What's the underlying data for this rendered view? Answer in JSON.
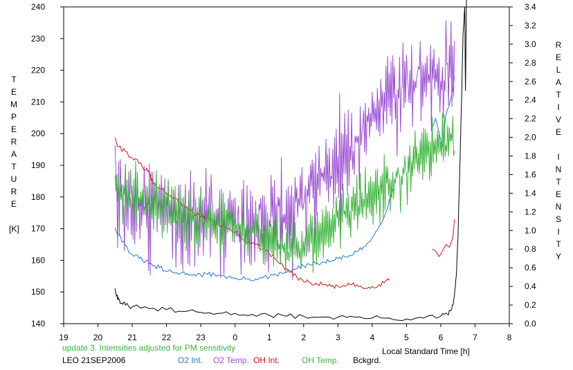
{
  "chart_data": {
    "type": "line",
    "xlabel": "Local Standard Time [h]",
    "ylabel_left_letters": [
      "T",
      "E",
      "M",
      "P",
      "E",
      "R",
      "A",
      "T",
      "U",
      "R",
      "E",
      "",
      "[K]"
    ],
    "ylabel_right_letters": [
      "R",
      "E",
      "L",
      "A",
      "T",
      "I",
      "V",
      "E",
      "",
      "I",
      "N",
      "T",
      "E",
      "N",
      "S",
      "I",
      "T",
      "Y"
    ],
    "x_ticks": [
      {
        "v": 19,
        "label": "19"
      },
      {
        "v": 20,
        "label": "20"
      },
      {
        "v": 21,
        "label": "21"
      },
      {
        "v": 22,
        "label": "22"
      },
      {
        "v": 23,
        "label": "23"
      },
      {
        "v": 24,
        "label": "0"
      },
      {
        "v": 25,
        "label": "1"
      },
      {
        "v": 26,
        "label": "2"
      },
      {
        "v": 27,
        "label": "3"
      },
      {
        "v": 28,
        "label": "4"
      },
      {
        "v": 29,
        "label": "5"
      },
      {
        "v": 30,
        "label": "6"
      },
      {
        "v": 31,
        "label": "7"
      },
      {
        "v": 32,
        "label": "8"
      }
    ],
    "xlim": [
      19,
      32
    ],
    "ylim_left": [
      140,
      240
    ],
    "y_ticks_left": [
      "140",
      "150",
      "160",
      "170",
      "180",
      "190",
      "200",
      "210",
      "220",
      "230",
      "240"
    ],
    "ylim_right": [
      0.0,
      3.4
    ],
    "y_ticks_right": [
      "0.0",
      "0.2",
      "0.4",
      "0.6",
      "0.8",
      "1.0",
      "1.2",
      "1.4",
      "1.6",
      "1.8",
      "2.0",
      "2.2",
      "2.4",
      "2.6",
      "2.8",
      "3.0",
      "3.2",
      "3.4"
    ],
    "annotation": "update 3. Intensities adjusted for PM sensitivity",
    "station": "LEO 21SEP2006",
    "series": [
      {
        "name": "O2 Int.",
        "color": "#1e78d2",
        "axis": "right",
        "x": [
          20.5,
          20.6,
          20.8,
          21.0,
          21.2,
          21.4,
          21.6,
          21.8,
          22.0,
          22.2,
          22.4,
          22.6,
          22.8,
          23.0,
          23.2,
          23.4,
          23.6,
          23.8,
          24.0,
          24.2,
          24.4,
          24.6,
          24.8,
          25.0,
          25.2,
          25.4,
          25.6,
          25.8,
          26.0,
          26.2,
          26.4,
          26.6,
          26.8,
          27.0,
          27.2,
          27.4,
          27.6,
          27.8,
          28.0,
          28.2,
          28.4,
          28.6
        ],
        "y": [
          1.03,
          0.96,
          0.84,
          0.74,
          0.7,
          0.67,
          0.62,
          0.6,
          0.56,
          0.55,
          0.54,
          0.54,
          0.53,
          0.52,
          0.53,
          0.53,
          0.52,
          0.5,
          0.48,
          0.48,
          0.48,
          0.48,
          0.49,
          0.5,
          0.52,
          0.54,
          0.57,
          0.59,
          0.62,
          0.63,
          0.65,
          0.66,
          0.67,
          0.7,
          0.72,
          0.73,
          0.78,
          0.83,
          0.92,
          1.05,
          1.2,
          1.44
        ]
      },
      {
        "name": "O2 Int.",
        "color": "#1e78d2",
        "axis": "right",
        "x": [
          29.75,
          29.85,
          29.95,
          30.05,
          30.15,
          30.25,
          30.35,
          30.4
        ],
        "y": [
          2.1,
          2.2,
          2.05,
          1.9,
          2.25,
          2.35,
          2.5,
          2.65
        ]
      },
      {
        "name": "O2 Temp.",
        "color": "#9d4fd4",
        "axis": "left",
        "noise": 14,
        "seed": 7,
        "x": [
          20.5,
          20.7,
          21.0,
          21.3,
          21.6,
          22.0,
          22.4,
          22.8,
          23.2,
          23.6,
          24.0,
          24.4,
          24.8,
          25.2,
          25.6,
          26.0,
          26.4,
          26.8,
          27.2,
          27.6,
          28.0,
          28.4,
          28.8,
          29.2,
          29.6,
          30.0,
          30.3,
          30.4
        ],
        "y": [
          186,
          180,
          174,
          176,
          180,
          178,
          174,
          174,
          176,
          174,
          172,
          172,
          174,
          174,
          176,
          180,
          184,
          190,
          192,
          196,
          204,
          210,
          214,
          216,
          218,
          220,
          222,
          223
        ]
      },
      {
        "name": "OH Int.",
        "color": "#dc0f0f",
        "axis": "right",
        "x": [
          20.5,
          20.6,
          20.8,
          21.0,
          21.2,
          21.4,
          21.5,
          21.6,
          21.8,
          22.0,
          22.2,
          22.4,
          22.6,
          22.8,
          23.0,
          23.2,
          23.4,
          23.6,
          23.8,
          24.0,
          24.2,
          24.4,
          24.6,
          24.8,
          25.0,
          25.2,
          25.4,
          25.6,
          25.8,
          26.0,
          26.2,
          26.4,
          26.6,
          26.8,
          27.0,
          27.2,
          27.4,
          27.6,
          27.8,
          28.0,
          28.2,
          28.4,
          28.5
        ],
        "y": [
          2.0,
          1.9,
          1.85,
          1.78,
          1.72,
          1.65,
          1.62,
          1.5,
          1.45,
          1.4,
          1.35,
          1.3,
          1.25,
          1.18,
          1.15,
          1.15,
          1.1,
          1.05,
          1.02,
          0.98,
          0.92,
          0.88,
          0.85,
          0.8,
          0.75,
          0.68,
          0.62,
          0.55,
          0.5,
          0.45,
          0.44,
          0.42,
          0.42,
          0.4,
          0.4,
          0.4,
          0.42,
          0.4,
          0.38,
          0.4,
          0.42,
          0.46,
          0.48
        ]
      },
      {
        "name": "OH Int.",
        "color": "#dc0f0f",
        "axis": "right",
        "x": [
          29.75,
          29.85,
          29.95,
          30.05,
          30.15,
          30.25,
          30.35,
          30.4
        ],
        "y": [
          0.8,
          0.78,
          0.72,
          0.78,
          0.85,
          0.82,
          0.92,
          1.12
        ]
      },
      {
        "name": "OH Temp.",
        "color": "#3cb43c",
        "axis": "left",
        "noise": 8,
        "seed": 13,
        "x": [
          20.5,
          20.8,
          21.2,
          21.6,
          22.0,
          22.4,
          22.8,
          23.2,
          23.6,
          24.0,
          24.4,
          24.8,
          25.2,
          25.6,
          26.0,
          26.4,
          26.8,
          27.2,
          27.6,
          28.0,
          28.4,
          28.8,
          29.2,
          29.6,
          30.0,
          30.3,
          30.4
        ],
        "y": [
          183,
          181,
          178,
          176,
          176,
          175,
          174,
          172,
          172,
          171,
          169,
          167,
          166,
          164,
          165,
          167,
          172,
          175,
          178,
          180,
          182,
          186,
          190,
          193,
          196,
          198,
          195
        ]
      },
      {
        "name": "Bckgrd.",
        "color": "#000000",
        "axis": "right",
        "x": [
          20.5,
          20.55,
          20.6,
          20.7,
          20.8,
          21.0,
          21.5,
          22.0,
          22.5,
          23.0,
          23.5,
          24.0,
          24.5,
          25.0,
          25.5,
          26.0,
          26.5,
          27.0,
          27.5,
          28.0,
          28.5,
          29.0,
          29.5,
          30.0,
          30.2,
          30.3,
          30.35,
          30.4,
          30.45,
          30.5,
          30.55,
          30.6,
          30.65,
          30.7,
          30.72,
          30.75
        ],
        "y": [
          0.38,
          0.3,
          0.26,
          0.22,
          0.2,
          0.18,
          0.16,
          0.15,
          0.13,
          0.12,
          0.11,
          0.11,
          0.1,
          0.09,
          0.08,
          0.08,
          0.07,
          0.07,
          0.07,
          0.06,
          0.06,
          0.05,
          0.06,
          0.08,
          0.1,
          0.14,
          0.2,
          0.3,
          0.5,
          0.9,
          1.6,
          2.3,
          3.1,
          3.4,
          2.5,
          3.5
        ]
      }
    ]
  },
  "legend": [
    {
      "label": "O2 Int.",
      "color": "#1e78d2"
    },
    {
      "label": "O2 Temp.",
      "color": "#9d4fd4"
    },
    {
      "label": "OH Int.",
      "color": "#dc0f0f"
    },
    {
      "label": "OH Temp.",
      "color": "#3cb43c"
    },
    {
      "label": "Bckgrd.",
      "color": "#000000"
    }
  ],
  "annotation_color": "#3cb43c"
}
